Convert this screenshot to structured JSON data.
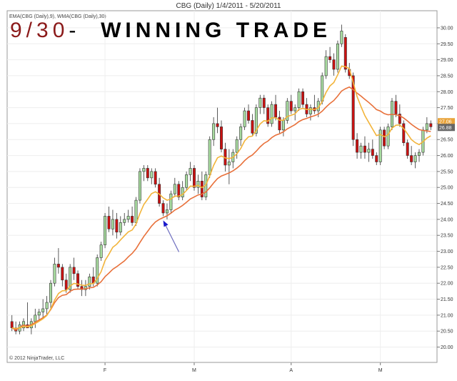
{
  "chart_data": {
    "type": "candlestick",
    "title": "CBG (Daily)  1/4/2011 - 5/20/2011",
    "indicator_label": "EMA(CBG (Daily),9), WMA(CBG (Daily),30)",
    "copyright": "© 2012 NinjaTrader, LLC",
    "overlay": {
      "date": "9/30",
      "dash": "-",
      "text": "WINNING TRADE"
    },
    "ylim": [
      19.9,
      30.2
    ],
    "y_ticks": [
      "20.00",
      "20.50",
      "21.00",
      "21.50",
      "22.00",
      "22.50",
      "23.00",
      "23.50",
      "24.00",
      "24.50",
      "25.00",
      "25.50",
      "26.00",
      "26.50",
      "27.00",
      "27.50",
      "28.00",
      "28.50",
      "29.00",
      "29.50",
      "30.00"
    ],
    "price_labels": [
      {
        "value": 27.06,
        "text": "27.06",
        "color": "#e8a33a"
      },
      {
        "value": 26.88,
        "text": "26.88",
        "color": "#666666"
      }
    ],
    "x_ticks": [
      {
        "index": 24,
        "label": "F"
      },
      {
        "index": 47,
        "label": "M"
      },
      {
        "index": 72,
        "label": "A"
      },
      {
        "index": 95,
        "label": "M"
      }
    ],
    "up_color": "#a8dca0",
    "down_color": "#cc1111",
    "ema_color": "#f2b43a",
    "wma_color": "#e8703a",
    "arrow_color": "#7070c0",
    "candles": [
      [
        20.8,
        21.0,
        20.5,
        20.6
      ],
      [
        20.6,
        20.8,
        20.4,
        20.5
      ],
      [
        20.5,
        20.8,
        20.4,
        20.7
      ],
      [
        20.6,
        20.9,
        20.5,
        20.8
      ],
      [
        20.7,
        21.4,
        20.6,
        20.6
      ],
      [
        20.6,
        20.9,
        20.4,
        20.8
      ],
      [
        20.8,
        21.2,
        20.6,
        21.0
      ],
      [
        21.0,
        21.2,
        20.8,
        21.1
      ],
      [
        21.1,
        21.5,
        20.9,
        21.2
      ],
      [
        21.2,
        21.6,
        21.0,
        21.4
      ],
      [
        21.4,
        22.1,
        21.2,
        22.0
      ],
      [
        22.0,
        22.8,
        21.9,
        22.6
      ],
      [
        22.6,
        23.1,
        22.3,
        22.5
      ],
      [
        22.5,
        22.6,
        21.9,
        22.1
      ],
      [
        22.1,
        22.3,
        21.7,
        21.8
      ],
      [
        21.8,
        22.6,
        21.7,
        22.5
      ],
      [
        22.5,
        22.8,
        22.1,
        22.3
      ],
      [
        22.3,
        22.4,
        21.8,
        21.9
      ],
      [
        21.9,
        22.1,
        21.6,
        21.8
      ],
      [
        21.8,
        22.1,
        21.6,
        21.9
      ],
      [
        21.9,
        22.3,
        21.8,
        22.2
      ],
      [
        22.2,
        22.5,
        21.9,
        22.0
      ],
      [
        22.0,
        22.9,
        21.9,
        22.8
      ],
      [
        22.8,
        23.3,
        22.7,
        23.2
      ],
      [
        23.2,
        24.2,
        23.1,
        24.1
      ],
      [
        24.1,
        24.4,
        23.6,
        23.7
      ],
      [
        23.7,
        24.3,
        23.5,
        24.0
      ],
      [
        24.0,
        24.2,
        23.4,
        23.6
      ],
      [
        23.6,
        24.1,
        23.5,
        23.9
      ],
      [
        23.9,
        24.2,
        23.8,
        24.0
      ],
      [
        24.0,
        24.3,
        23.9,
        24.1
      ],
      [
        24.1,
        24.4,
        23.8,
        23.9
      ],
      [
        23.9,
        24.7,
        23.8,
        24.6
      ],
      [
        24.6,
        25.6,
        24.5,
        25.5
      ],
      [
        25.5,
        25.7,
        25.2,
        25.6
      ],
      [
        25.6,
        25.7,
        25.2,
        25.3
      ],
      [
        25.3,
        25.6,
        25.1,
        25.5
      ],
      [
        25.5,
        25.6,
        25.0,
        25.1
      ],
      [
        25.1,
        25.3,
        24.4,
        24.5
      ],
      [
        24.5,
        24.6,
        24.1,
        24.2
      ],
      [
        24.2,
        24.5,
        24.0,
        24.3
      ],
      [
        24.3,
        24.9,
        24.2,
        24.8
      ],
      [
        24.8,
        25.3,
        24.7,
        25.1
      ],
      [
        25.1,
        25.2,
        24.6,
        24.7
      ],
      [
        24.7,
        25.2,
        24.6,
        25.0
      ],
      [
        25.0,
        25.5,
        24.9,
        25.4
      ],
      [
        25.4,
        25.8,
        25.2,
        25.6
      ],
      [
        25.6,
        25.7,
        24.9,
        25.0
      ],
      [
        25.0,
        25.4,
        24.8,
        25.2
      ],
      [
        25.2,
        25.5,
        24.6,
        24.7
      ],
      [
        24.7,
        25.5,
        24.6,
        25.4
      ],
      [
        25.4,
        26.6,
        25.3,
        26.5
      ],
      [
        26.5,
        27.2,
        26.3,
        27.0
      ],
      [
        27.0,
        27.5,
        26.7,
        26.9
      ],
      [
        26.9,
        27.1,
        26.1,
        26.2
      ],
      [
        26.2,
        26.4,
        25.5,
        25.7
      ],
      [
        25.7,
        26.2,
        25.1,
        25.8
      ],
      [
        25.8,
        26.2,
        25.6,
        26.1
      ],
      [
        26.1,
        26.6,
        25.9,
        26.5
      ],
      [
        26.5,
        27.0,
        26.3,
        26.9
      ],
      [
        26.9,
        27.5,
        26.8,
        27.4
      ],
      [
        27.4,
        27.6,
        27.0,
        27.1
      ],
      [
        27.1,
        27.3,
        26.6,
        26.7
      ],
      [
        26.7,
        27.6,
        26.6,
        27.5
      ],
      [
        27.5,
        27.9,
        27.3,
        27.8
      ],
      [
        27.8,
        27.9,
        27.3,
        27.5
      ],
      [
        27.5,
        27.6,
        26.9,
        27.0
      ],
      [
        27.0,
        27.7,
        26.9,
        27.6
      ],
      [
        27.6,
        27.9,
        27.1,
        27.2
      ],
      [
        27.2,
        27.4,
        26.7,
        26.8
      ],
      [
        26.8,
        27.2,
        26.6,
        27.1
      ],
      [
        27.1,
        27.8,
        27.0,
        27.7
      ],
      [
        27.7,
        27.9,
        27.3,
        27.4
      ],
      [
        27.4,
        27.6,
        27.1,
        27.5
      ],
      [
        27.5,
        28.1,
        27.4,
        28.0
      ],
      [
        28.0,
        28.1,
        27.5,
        27.6
      ],
      [
        27.6,
        27.8,
        27.2,
        27.3
      ],
      [
        27.3,
        27.6,
        27.1,
        27.5
      ],
      [
        27.5,
        27.9,
        27.3,
        27.4
      ],
      [
        27.4,
        27.8,
        27.2,
        27.7
      ],
      [
        27.7,
        28.6,
        27.6,
        28.5
      ],
      [
        28.5,
        29.3,
        28.4,
        29.1
      ],
      [
        29.1,
        29.4,
        28.9,
        29.0
      ],
      [
        29.0,
        29.2,
        28.5,
        28.7
      ],
      [
        28.7,
        29.6,
        28.6,
        29.5
      ],
      [
        29.5,
        30.1,
        29.4,
        29.9
      ],
      [
        29.7,
        29.8,
        28.6,
        28.7
      ],
      [
        28.7,
        28.9,
        28.4,
        28.5
      ],
      [
        28.5,
        28.6,
        26.3,
        26.5
      ],
      [
        26.5,
        26.7,
        25.9,
        26.1
      ],
      [
        26.1,
        26.4,
        25.9,
        26.3
      ],
      [
        26.3,
        26.6,
        25.9,
        26.1
      ],
      [
        26.1,
        26.4,
        25.8,
        26.2
      ],
      [
        26.2,
        26.5,
        25.9,
        26.0
      ],
      [
        26.0,
        26.1,
        25.7,
        25.8
      ],
      [
        25.8,
        26.9,
        25.7,
        26.8
      ],
      [
        26.8,
        26.9,
        26.2,
        26.3
      ],
      [
        26.3,
        27.0,
        26.2,
        26.9
      ],
      [
        26.9,
        27.8,
        26.8,
        27.7
      ],
      [
        27.7,
        27.9,
        27.2,
        27.3
      ],
      [
        27.3,
        27.6,
        26.9,
        27.0
      ],
      [
        27.0,
        27.1,
        26.3,
        26.4
      ],
      [
        26.4,
        26.5,
        25.9,
        26.0
      ],
      [
        26.0,
        26.3,
        25.7,
        25.8
      ],
      [
        25.8,
        26.1,
        25.6,
        26.0
      ],
      [
        26.0,
        26.2,
        25.8,
        26.1
      ],
      [
        26.1,
        26.9,
        26.0,
        26.8
      ],
      [
        26.8,
        27.2,
        26.7,
        27.0
      ],
      [
        27.0,
        27.1,
        26.8,
        26.9
      ]
    ]
  }
}
